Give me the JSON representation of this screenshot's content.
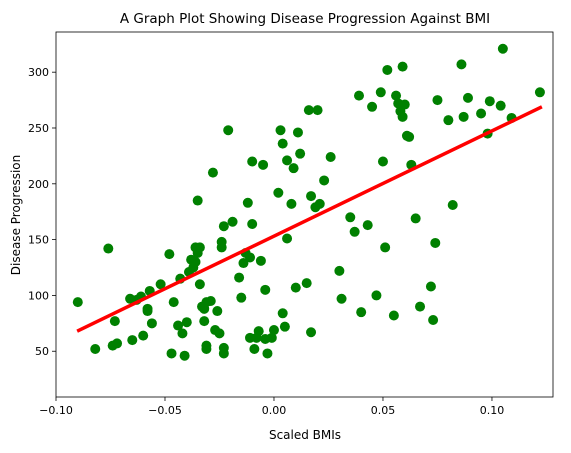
{
  "chart_data": {
    "type": "scatter",
    "title": "A Graph Plot Showing Disease Progression Against BMI",
    "xlabel": "Scaled BMIs",
    "ylabel": "Disease Progression",
    "xlim": [
      -0.1,
      0.128
    ],
    "ylim": [
      9,
      336
    ],
    "xticks": [
      -0.1,
      -0.05,
      0.0,
      0.05,
      0.1
    ],
    "xtick_labels": [
      "−0.10",
      "−0.05",
      "0.00",
      "0.05",
      "0.10"
    ],
    "yticks": [
      50,
      100,
      150,
      200,
      250,
      300
    ],
    "ytick_labels": [
      "50",
      "100",
      "150",
      "200",
      "250",
      "300"
    ],
    "grid": false,
    "point_color": "#008000",
    "line_color": "#ff0000",
    "regression_line": {
      "x": [
        -0.0903,
        0.1229
      ],
      "y": [
        68,
        269
      ]
    },
    "points": {
      "x": [
        -0.09,
        -0.082,
        -0.076,
        -0.074,
        -0.073,
        -0.072,
        -0.066,
        -0.065,
        -0.063,
        -0.061,
        -0.06,
        -0.058,
        -0.058,
        -0.057,
        -0.056,
        -0.052,
        -0.048,
        -0.047,
        -0.046,
        -0.044,
        -0.043,
        -0.042,
        -0.041,
        -0.04,
        -0.039,
        -0.038,
        -0.037,
        -0.036,
        -0.036,
        -0.035,
        -0.035,
        -0.034,
        -0.034,
        -0.033,
        -0.032,
        -0.032,
        -0.031,
        -0.031,
        -0.031,
        -0.029,
        -0.028,
        -0.027,
        -0.026,
        -0.025,
        -0.024,
        -0.024,
        -0.023,
        -0.023,
        -0.023,
        -0.021,
        -0.019,
        -0.016,
        -0.015,
        -0.014,
        -0.013,
        -0.012,
        -0.011,
        -0.011,
        -0.01,
        -0.01,
        -0.009,
        -0.008,
        -0.007,
        -0.006,
        -0.005,
        -0.004,
        -0.004,
        -0.003,
        -0.001,
        0.0,
        0.002,
        0.003,
        0.004,
        0.004,
        0.005,
        0.006,
        0.006,
        0.008,
        0.009,
        0.01,
        0.011,
        0.012,
        0.015,
        0.016,
        0.017,
        0.017,
        0.019,
        0.02,
        0.021,
        0.023,
        0.026,
        0.03,
        0.031,
        0.035,
        0.037,
        0.039,
        0.04,
        0.043,
        0.045,
        0.047,
        0.049,
        0.05,
        0.051,
        0.052,
        0.055,
        0.056,
        0.057,
        0.058,
        0.059,
        0.059,
        0.06,
        0.061,
        0.062,
        0.063,
        0.065,
        0.067,
        0.072,
        0.073,
        0.074,
        0.075,
        0.08,
        0.082,
        0.086,
        0.087,
        0.089,
        0.095,
        0.098,
        0.099,
        0.104,
        0.105,
        0.109,
        0.122
      ],
      "y": [
        94,
        52,
        142,
        55,
        77,
        57,
        97,
        60,
        96,
        99,
        64,
        88,
        86,
        104,
        75,
        110,
        137,
        48,
        94,
        73,
        115,
        66,
        46,
        76,
        121,
        132,
        125,
        130,
        143,
        185,
        138,
        143,
        110,
        90,
        88,
        77,
        52,
        55,
        94,
        95,
        210,
        69,
        86,
        66,
        143,
        148,
        162,
        48,
        53,
        248,
        166,
        116,
        98,
        129,
        138,
        183,
        134,
        62,
        164,
        220,
        52,
        62,
        68,
        131,
        217,
        105,
        61,
        48,
        62,
        69,
        192,
        248,
        236,
        84,
        72,
        151,
        221,
        182,
        214,
        107,
        246,
        227,
        111,
        266,
        189,
        67,
        179,
        266,
        182,
        203,
        224,
        122,
        97,
        170,
        157,
        279,
        85,
        163,
        269,
        100,
        282,
        220,
        143,
        302,
        82,
        279,
        272,
        265,
        260,
        305,
        271,
        243,
        242,
        217,
        169,
        90,
        108,
        78,
        147,
        275,
        257,
        181,
        307,
        260,
        277,
        263,
        245,
        274,
        270,
        321,
        259,
        282
      ]
    }
  }
}
